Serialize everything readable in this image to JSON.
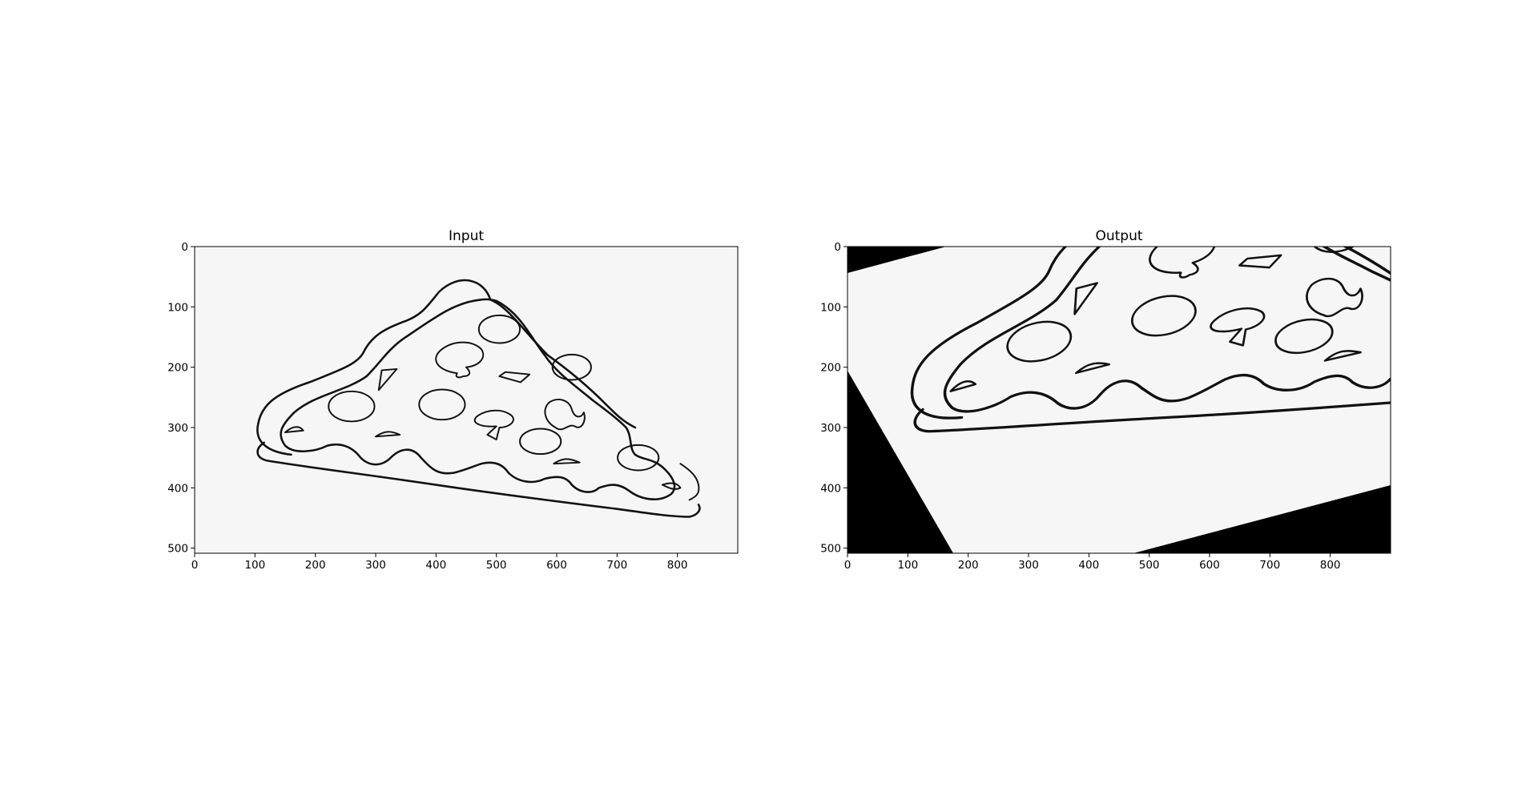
{
  "figure": {
    "panels": [
      {
        "title": "Input",
        "x_ticks": [
          "0",
          "100",
          "200",
          "300",
          "400",
          "500",
          "600",
          "700",
          "800"
        ],
        "y_ticks": [
          "0",
          "100",
          "200",
          "300",
          "400",
          "500"
        ],
        "image": "pizza-slice-line-drawing",
        "background_color": "#f6f6f6"
      },
      {
        "title": "Output",
        "x_ticks": [
          "0",
          "100",
          "200",
          "300",
          "400",
          "500",
          "600",
          "700",
          "800"
        ],
        "y_ticks": [
          "0",
          "100",
          "200",
          "300",
          "400",
          "500"
        ],
        "image": "pizza-slice-affine-transformed",
        "background_color": "#f6f6f6",
        "fill_color": "#000000"
      }
    ]
  }
}
